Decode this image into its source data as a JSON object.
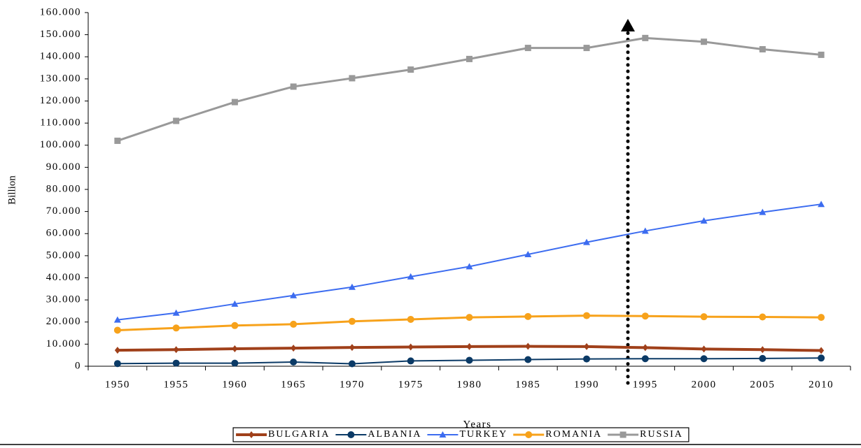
{
  "chart_data": {
    "type": "line",
    "y_label": "Billion",
    "x_label": "Years",
    "categories": [
      "1950",
      "1955",
      "1960",
      "1965",
      "1970",
      "1975",
      "1980",
      "1985",
      "1990",
      "1995",
      "2000",
      "2005",
      "2010"
    ],
    "ylim": [
      0,
      160000
    ],
    "yticks": [
      0,
      {
        "value": 10000,
        "label": "10.000"
      },
      {
        "value": 20000,
        "label": "20.000"
      },
      {
        "value": 30000,
        "label": "30.000"
      },
      {
        "value": 40000,
        "label": "40.000"
      },
      {
        "value": 50000,
        "label": "50.000"
      },
      {
        "value": 60000,
        "label": "60.000"
      },
      {
        "value": 70000,
        "label": "70.000"
      },
      {
        "value": 80000,
        "label": "80.000"
      },
      {
        "value": 90000,
        "label": "90.000"
      },
      {
        "value": 100000,
        "label": "100.000"
      },
      {
        "value": 110000,
        "label": "110.000"
      },
      {
        "value": 120000,
        "label": "120.000"
      },
      {
        "value": 130000,
        "label": "130.000"
      },
      {
        "value": 140000,
        "label": "140.000"
      },
      {
        "value": 150000,
        "label": "150.000"
      },
      {
        "value": 160000,
        "label": "160.000"
      }
    ],
    "legend": "bottom",
    "series": [
      {
        "name": "BULGARIA",
        "color": "#a0401a",
        "marker": "diamond",
        "width": 4,
        "values": [
          7250,
          7500,
          7900,
          8200,
          8500,
          8700,
          8900,
          9000,
          8900,
          8400,
          7800,
          7500,
          7100
        ]
      },
      {
        "name": "ALBANIA",
        "color": "#0b3a66",
        "marker": "circle",
        "width": 2,
        "values": [
          1200,
          1400,
          1400,
          1900,
          1100,
          2400,
          2700,
          3000,
          3300,
          3400,
          3400,
          3500,
          3700
        ]
      },
      {
        "name": "TURKEY",
        "color": "#3c6cf0",
        "marker": "triangle",
        "width": 2,
        "values": [
          21000,
          24100,
          28200,
          32000,
          35800,
          40500,
          45100,
          50600,
          56100,
          61200,
          65800,
          69700,
          73300
        ]
      },
      {
        "name": "ROMANIA",
        "color": "#f7a21b",
        "marker": "circle",
        "width": 3,
        "values": [
          16300,
          17300,
          18400,
          19000,
          20300,
          21200,
          22100,
          22500,
          22900,
          22700,
          22400,
          22300,
          22100
        ]
      },
      {
        "name": "RUSSIA",
        "color": "#999999",
        "marker": "square",
        "width": 3,
        "values": [
          102000,
          111000,
          119500,
          126500,
          130300,
          134200,
          139000,
          144000,
          144000,
          148500,
          146800,
          143400,
          140900
        ]
      }
    ]
  }
}
